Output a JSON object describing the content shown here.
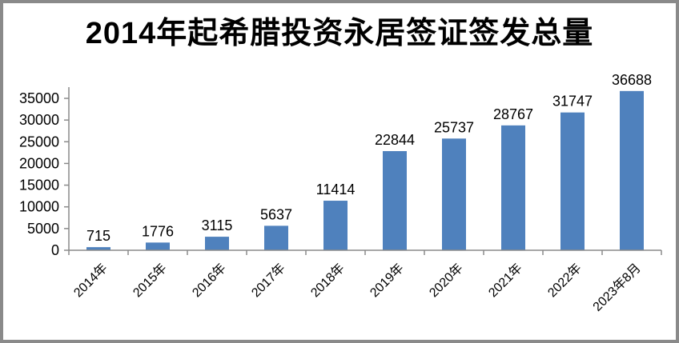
{
  "frame": {
    "border_color": "#8a8a8a",
    "background_color": "#ffffff"
  },
  "chart_data": {
    "type": "bar",
    "title": "2014年起希腊投资永居签证签发总量",
    "categories": [
      "2014年",
      "2015年",
      "2016年",
      "2017年",
      "2018年",
      "2019年",
      "2020年",
      "2021年",
      "2022年",
      "2023年8月"
    ],
    "values": [
      715,
      1776,
      3115,
      5637,
      11414,
      22844,
      25737,
      28767,
      31747,
      36688
    ],
    "data_labels": [
      "715",
      "1776",
      "3115",
      "5637",
      "11414",
      "22844",
      "25737",
      "28767",
      "31747",
      "36688"
    ],
    "xlabel": "",
    "ylabel": "",
    "ylim": [
      0,
      35000
    ],
    "yticks": [
      0,
      5000,
      10000,
      15000,
      20000,
      25000,
      30000,
      35000
    ],
    "x_label_rotation": -45,
    "grid": false,
    "legend": "none",
    "bar_color": "#4f81bd",
    "axis_color": "#8a8a8a",
    "text_color": "#000000"
  }
}
